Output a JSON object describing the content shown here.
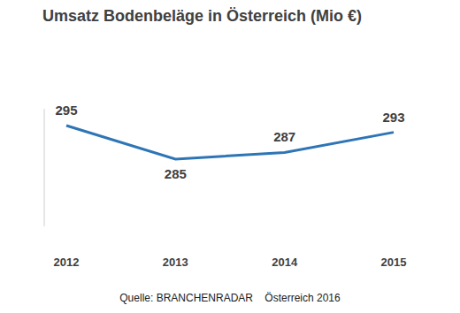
{
  "chart_data": {
    "type": "line",
    "title": "Umsatz Bodenbeläge in Österreich (Mio €)",
    "subtitle": "Quelle: BRANCHENRADAR    Österreich 2016",
    "categories": [
      "2012",
      "2013",
      "2014",
      "2015"
    ],
    "values": [
      295,
      285,
      287,
      293
    ],
    "color": "#2e75b6",
    "ylim": [
      265,
      300
    ],
    "data_labels": true,
    "tick_labels": "x",
    "grid": false
  }
}
